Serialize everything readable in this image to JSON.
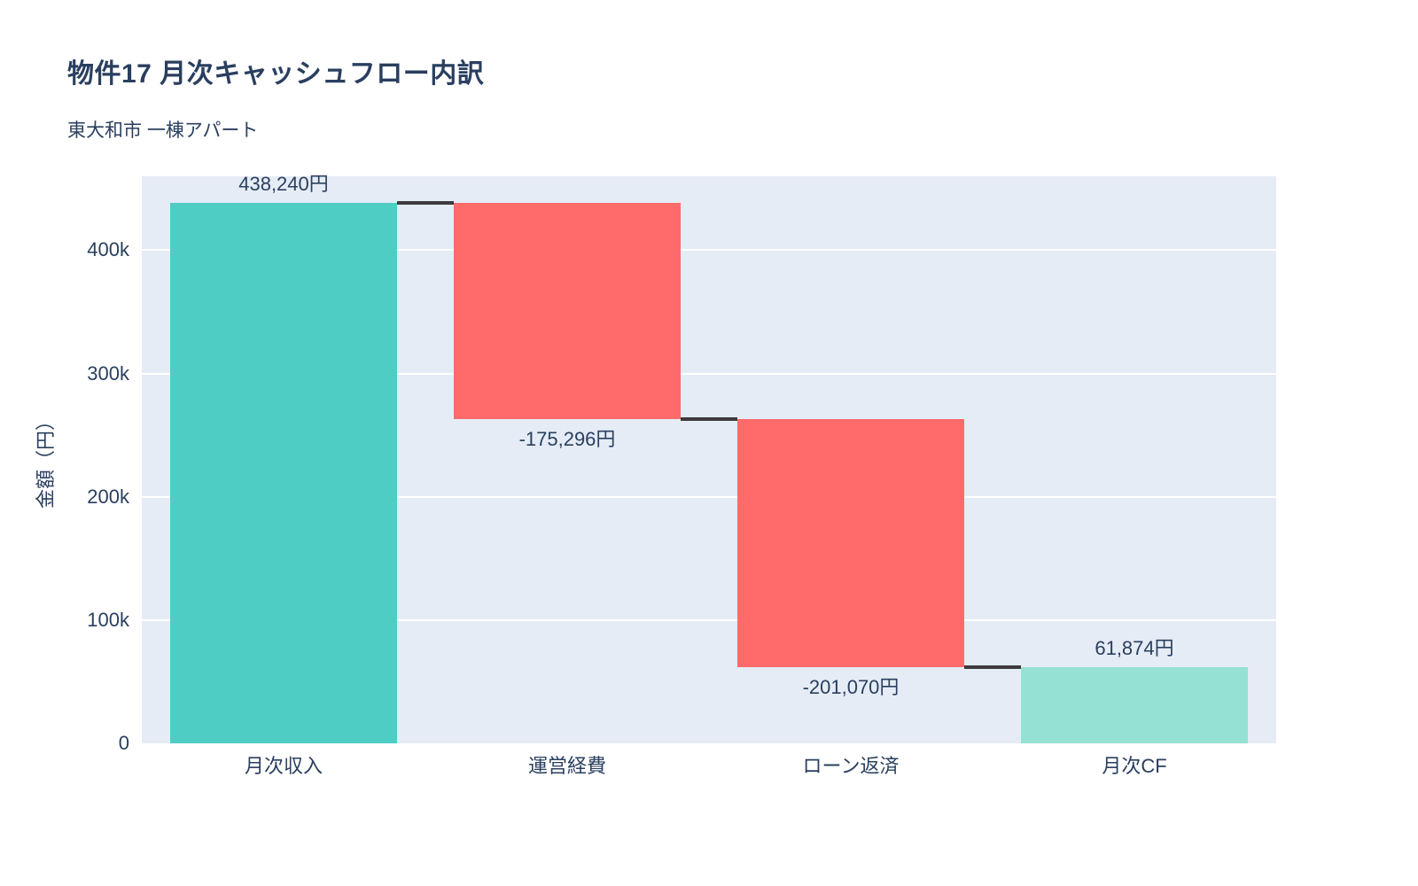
{
  "chart_data": {
    "type": "waterfall",
    "title": "物件17 月次キャッシュフロー内訳",
    "subtitle": "東大和市 一棟アパート",
    "ylabel": "金額（円）",
    "xlabel": "",
    "categories": [
      "月次収入",
      "運営経費",
      "ローン返済",
      "月次CF"
    ],
    "measures": [
      "relative",
      "relative",
      "relative",
      "total"
    ],
    "values": [
      438240,
      -175296,
      -201070,
      61874
    ],
    "cumulative": [
      438240,
      262944,
      61874,
      61874
    ],
    "bar_labels": [
      "438,240円",
      "-175,296円",
      "-201,070円",
      "61,874円"
    ],
    "ylim": [
      0,
      460000
    ],
    "yticks": [
      0,
      100000,
      200000,
      300000,
      400000
    ],
    "ytick_labels": [
      "0",
      "100k",
      "200k",
      "300k",
      "400k"
    ],
    "grid": true,
    "legend": "none",
    "colors": {
      "increasing": "#4ECDC4",
      "decreasing": "#FF6B6B",
      "total": "#95E1D3",
      "connector": "#3E3A3E",
      "plot_background": "#E5ECF6",
      "gridline": "#FFFFFF",
      "text": "#2a3f5f"
    }
  }
}
